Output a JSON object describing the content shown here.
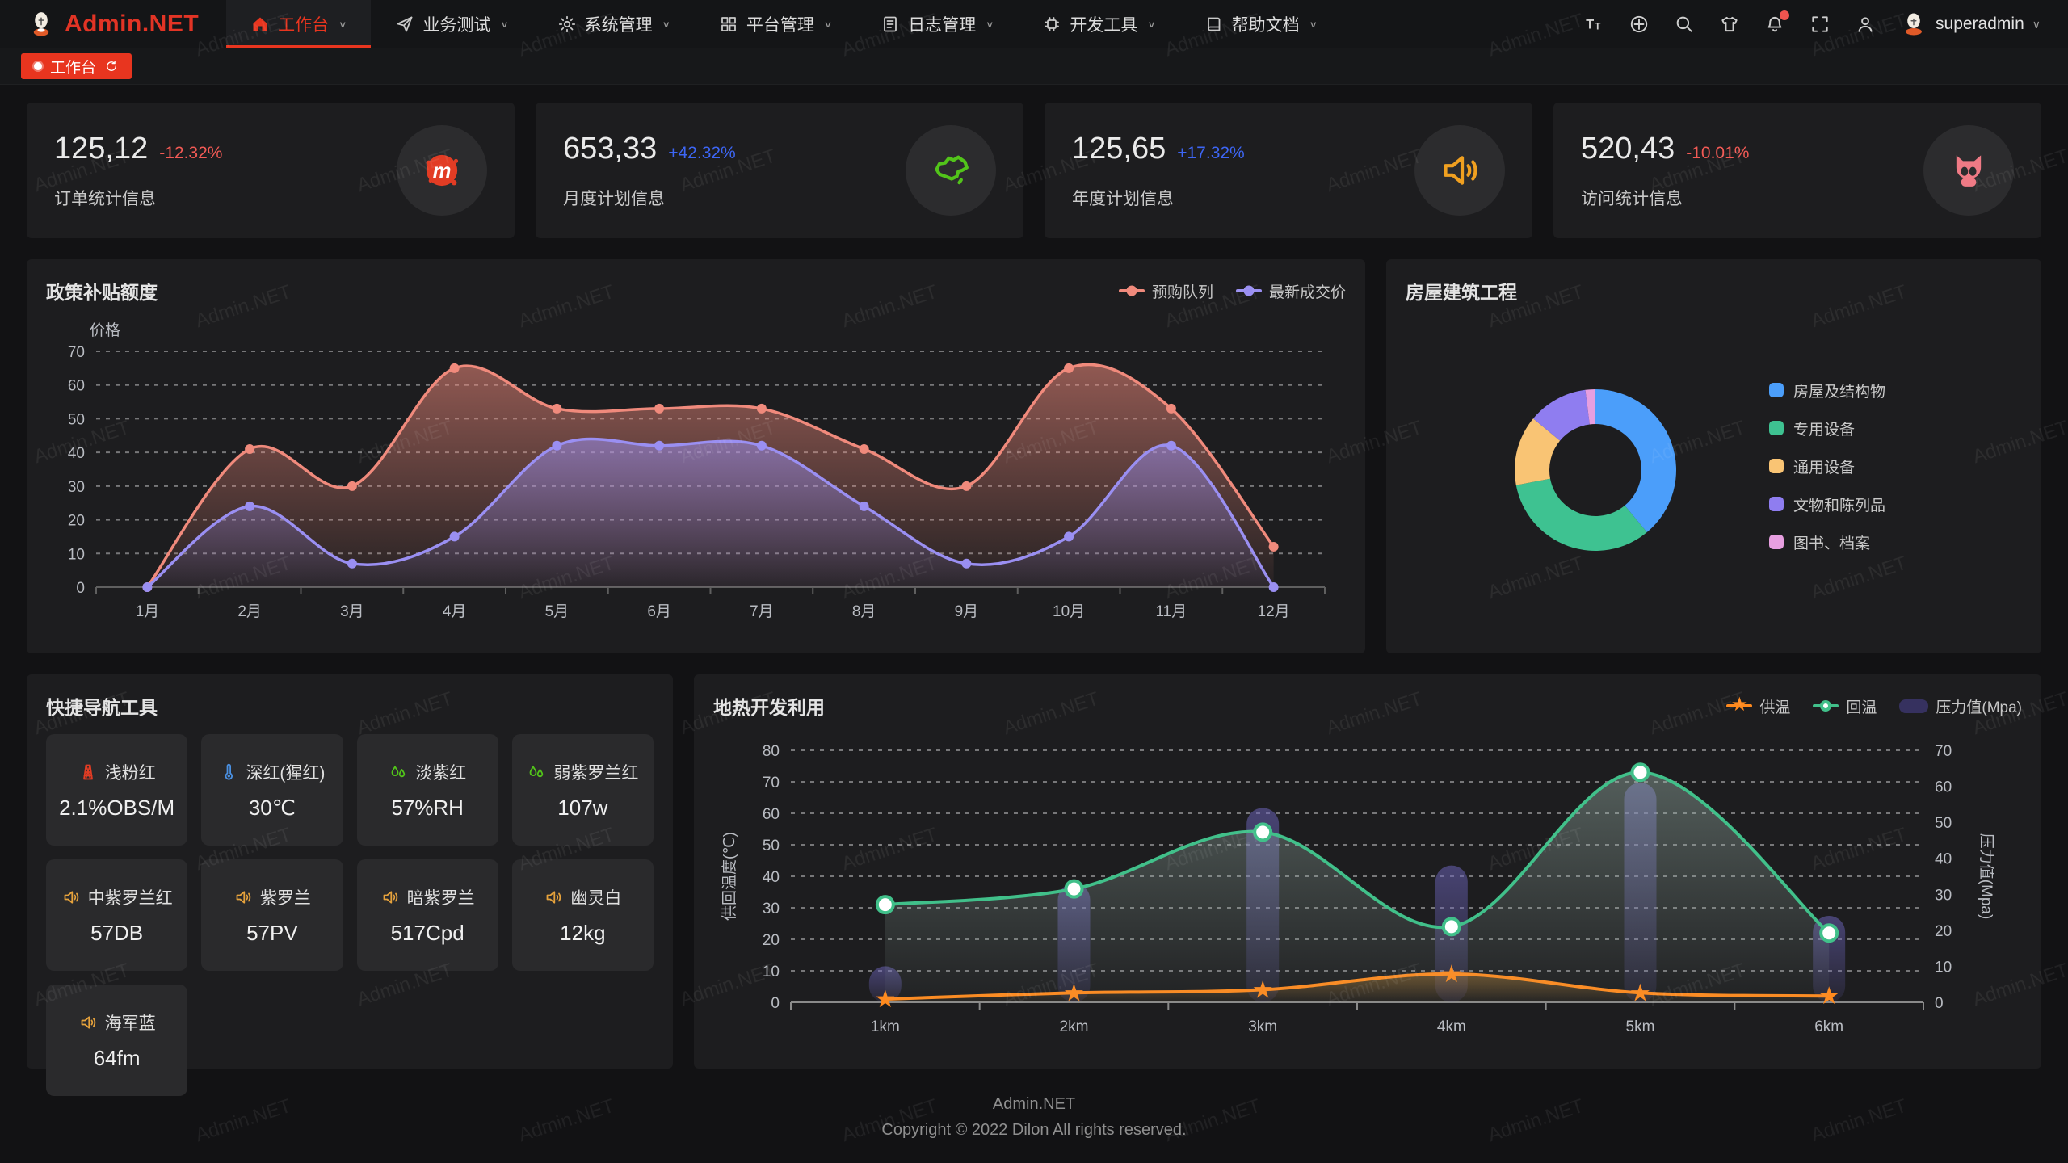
{
  "navbar": {
    "logo": {
      "text": "Admin.NET",
      "icon": "logo-figure-icon"
    },
    "menu": [
      {
        "label": "工作台",
        "icon": "home-icon",
        "active": true
      },
      {
        "label": "业务测试",
        "icon": "send-icon",
        "active": false
      },
      {
        "label": "系统管理",
        "icon": "gear-icon",
        "active": false
      },
      {
        "label": "平台管理",
        "icon": "grid-icon",
        "active": false
      },
      {
        "label": "日志管理",
        "icon": "document-icon",
        "active": false
      },
      {
        "label": "开发工具",
        "icon": "cpu-icon",
        "active": false
      },
      {
        "label": "帮助文档",
        "icon": "book-icon",
        "active": false
      }
    ],
    "right_icons": [
      {
        "name": "font-size-icon",
        "badge": false
      },
      {
        "name": "language-icon",
        "badge": false
      },
      {
        "name": "search-icon",
        "badge": false
      },
      {
        "name": "theme-shirt-icon",
        "badge": false
      },
      {
        "name": "bell-icon",
        "badge": true
      },
      {
        "name": "fullscreen-icon",
        "badge": false
      },
      {
        "name": "user-icon",
        "badge": false
      }
    ],
    "user": {
      "name": "superadmin",
      "avatar_icon": "avatar-figure-icon"
    }
  },
  "tabbar": {
    "tabs": [
      {
        "label": "工作台",
        "active": true
      }
    ]
  },
  "stats": [
    {
      "value": "125,12",
      "delta": "-12.32%",
      "trend": "down",
      "label": "订单统计信息",
      "icon": "meetup-icon"
    },
    {
      "value": "653,33",
      "delta": "+42.32%",
      "trend": "up",
      "label": "月度计划信息",
      "icon": "china-map-icon"
    },
    {
      "value": "125,65",
      "delta": "+17.32%",
      "trend": "up",
      "label": "年度计划信息",
      "icon": "speaker-icon"
    },
    {
      "value": "520,43",
      "delta": "-10.01%",
      "trend": "down",
      "label": "访问统计信息",
      "icon": "cat-icon"
    }
  ],
  "quicknav": {
    "title": "快捷导航工具",
    "items": [
      {
        "icon": "tower-icon",
        "icon_color": "#e23c24",
        "name": "浅粉红",
        "value": "2.1%OBS/M"
      },
      {
        "icon": "thermometer-icon",
        "icon_color": "#4a90e2",
        "name": "深红(猩红)",
        "value": "30℃"
      },
      {
        "icon": "drops-icon",
        "icon_color": "#52c41a",
        "name": "淡紫红",
        "value": "57%RH"
      },
      {
        "icon": "drops-icon",
        "icon_color": "#52c41a",
        "name": "弱紫罗兰红",
        "value": "107w"
      },
      {
        "icon": "speaker-small-icon",
        "icon_color": "#e6a23c",
        "name": "中紫罗兰红",
        "value": "57DB"
      },
      {
        "icon": "speaker-small-icon",
        "icon_color": "#e6a23c",
        "name": "紫罗兰",
        "value": "57PV"
      },
      {
        "icon": "speaker-small-icon",
        "icon_color": "#e6a23c",
        "name": "暗紫罗兰",
        "value": "517Cpd"
      },
      {
        "icon": "speaker-small-icon",
        "icon_color": "#e6a23c",
        "name": "幽灵白",
        "value": "12kg"
      },
      {
        "icon": "speaker-small-icon",
        "icon_color": "#e6a23c",
        "name": "海军蓝",
        "value": "64fm"
      }
    ]
  },
  "footer": {
    "line1": "Admin.NET",
    "line2": "Copyright © 2022 Dilon All rights reserved."
  },
  "watermark": {
    "text": "Admin.NET"
  },
  "colors": {
    "accent_red": "#e8351f",
    "delta_up": "#3d66f5",
    "delta_down": "#f25a55"
  },
  "chart_data": [
    {
      "id": "subsidy",
      "type": "line",
      "title": "政策补贴额度",
      "ylabel": "价格",
      "categories": [
        "1月",
        "2月",
        "3月",
        "4月",
        "5月",
        "6月",
        "7月",
        "8月",
        "9月",
        "10月",
        "11月",
        "12月"
      ],
      "series": [
        {
          "name": "预购队列",
          "color": "#f08a7c",
          "values": [
            0,
            41,
            30,
            65,
            53,
            53,
            53,
            41,
            30,
            65,
            53,
            12
          ]
        },
        {
          "name": "最新成交价",
          "color": "#9a8ff2",
          "values": [
            0,
            24,
            7,
            15,
            42,
            42,
            42,
            24,
            7,
            15,
            42,
            0
          ]
        }
      ],
      "ylim": [
        0,
        70
      ],
      "ystep": 10,
      "grid": "dashed",
      "legend_position": "top-right",
      "smooth": true,
      "area": true
    },
    {
      "id": "housing",
      "type": "pie",
      "donut": true,
      "title": "房屋建筑工程",
      "legend_position": "right",
      "slices": [
        {
          "label": "房屋及结构物",
          "value": 39,
          "color": "#4b9efa"
        },
        {
          "label": "专用设备",
          "value": 33,
          "color": "#3ec291"
        },
        {
          "label": "通用设备",
          "value": 14,
          "color": "#f9c474"
        },
        {
          "label": "文物和陈列品",
          "value": 12,
          "color": "#8f7df0"
        },
        {
          "label": "图书、档案",
          "value": 2,
          "color": "#e79fe0"
        }
      ]
    },
    {
      "id": "geothermal",
      "type": "line-bar",
      "title": "地热开发利用",
      "categories": [
        "1km",
        "2km",
        "3km",
        "4km",
        "5km",
        "6km"
      ],
      "y_left": {
        "label": "供回温度(℃)",
        "min": 0,
        "max": 80,
        "step": 10
      },
      "y_right": {
        "label": "压力值(Mpa)",
        "min": 0,
        "max": 70,
        "step": 10
      },
      "grid": "dashed",
      "legend_position": "top-right",
      "series": [
        {
          "name": "供温",
          "type": "line",
          "axis": "left",
          "color": "#ff8a1e",
          "marker": "star",
          "values": [
            1,
            3,
            4,
            9,
            3,
            2
          ]
        },
        {
          "name": "回温",
          "type": "line",
          "axis": "left",
          "color": "#41c08a",
          "marker": "circle",
          "values": [
            31,
            36,
            54,
            24,
            73,
            22
          ],
          "area": true
        },
        {
          "name": "压力值(Mpa)",
          "type": "bar",
          "axis": "right",
          "color": "#4a4380",
          "values": [
            10,
            33,
            54,
            38,
            61,
            24
          ]
        }
      ]
    }
  ]
}
